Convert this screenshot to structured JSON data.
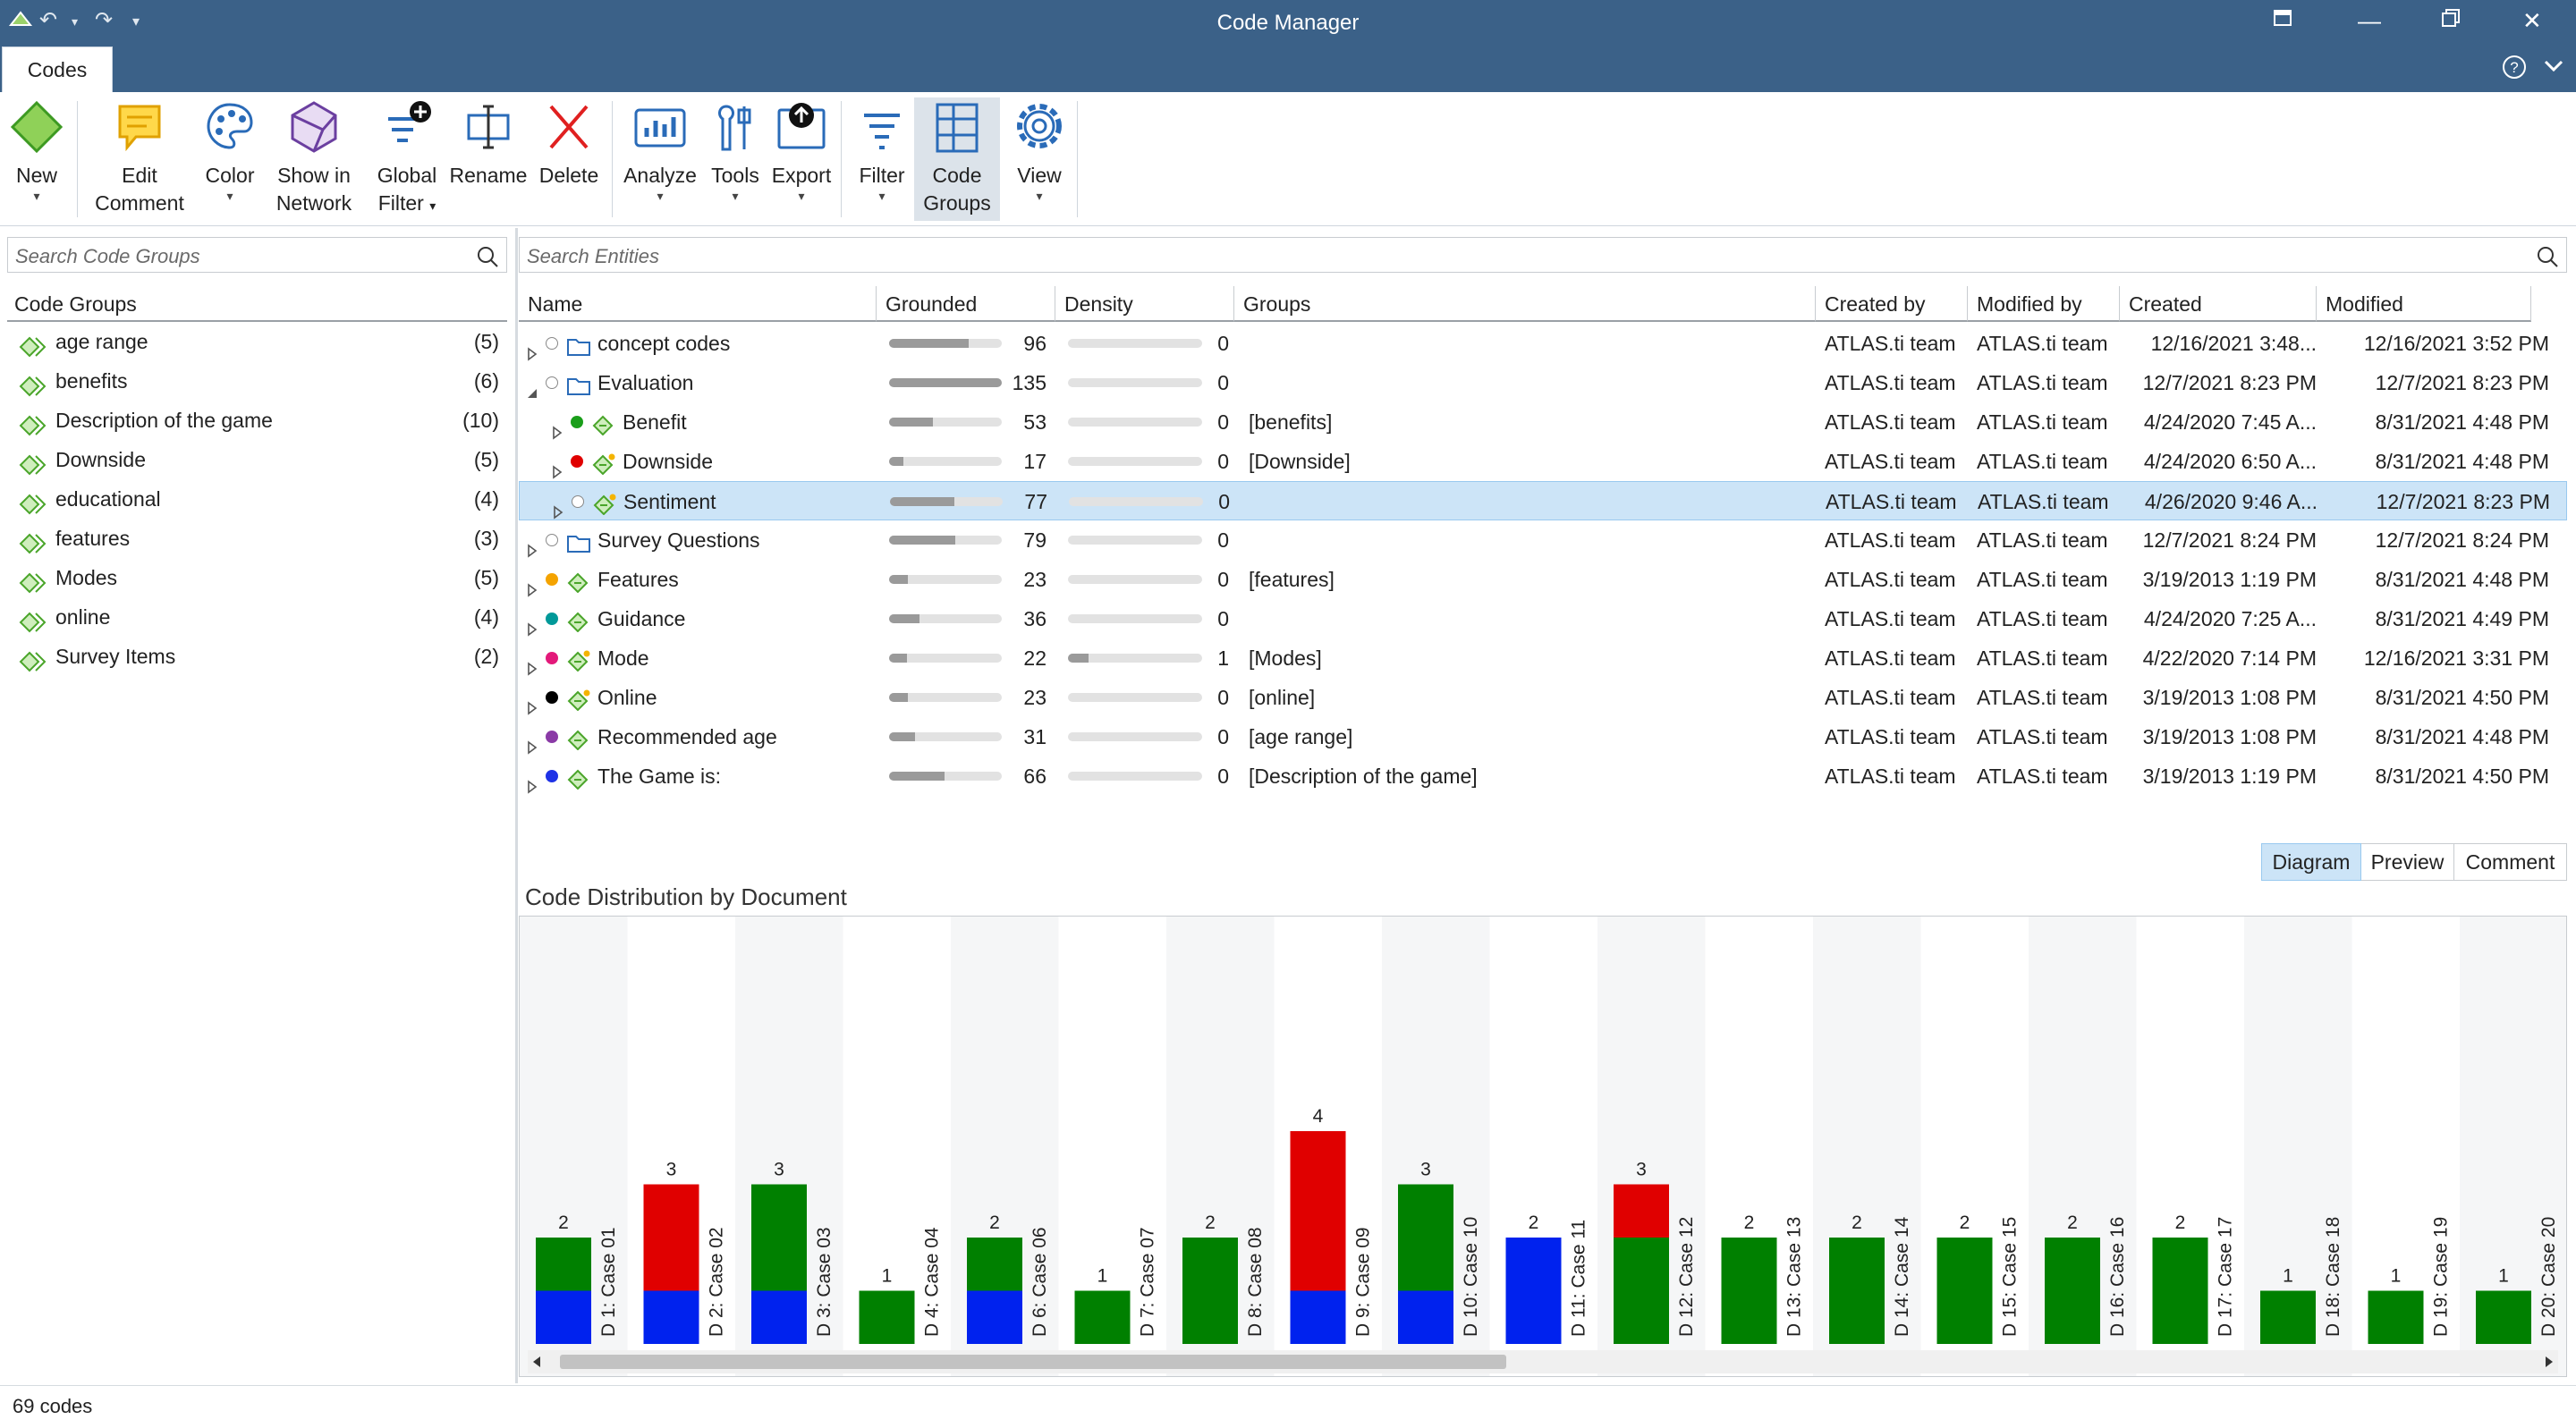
{
  "window": {
    "title": "Code Manager"
  },
  "tabs": [
    {
      "label": "Codes"
    }
  ],
  "ribbon": {
    "new": "New",
    "edit_comment": [
      "Edit",
      "Comment"
    ],
    "color": "Color",
    "show_network": [
      "Show in",
      "Network"
    ],
    "global_filter": [
      "Global",
      "Filter"
    ],
    "rename": "Rename",
    "delete": "Delete",
    "analyze": "Analyze",
    "tools": "Tools",
    "export": "Export",
    "filter": "Filter",
    "code_groups": [
      "Code",
      "Groups"
    ],
    "view": "View"
  },
  "left_panel": {
    "search_placeholder": "Search Code Groups",
    "header": "Code Groups",
    "groups": [
      {
        "name": "age range",
        "count": "(5)"
      },
      {
        "name": "benefits",
        "count": "(6)"
      },
      {
        "name": "Description of the game",
        "count": "(10)"
      },
      {
        "name": "Downside",
        "count": "(5)"
      },
      {
        "name": "educational",
        "count": "(4)"
      },
      {
        "name": "features",
        "count": "(3)"
      },
      {
        "name": "Modes",
        "count": "(5)"
      },
      {
        "name": "online",
        "count": "(4)"
      },
      {
        "name": "Survey Items",
        "count": "(2)"
      }
    ]
  },
  "entities": {
    "search_placeholder": "Search Entities",
    "columns": [
      "Name",
      "Grounded",
      "Density",
      "Groups",
      "Created by",
      "Modified by",
      "Created",
      "Modified"
    ],
    "rows": [
      {
        "name": "concept codes",
        "kind": "folder",
        "indent": 0,
        "expanded": false,
        "color": "",
        "grounded": "96",
        "gfrac": 0.71,
        "density": "0",
        "dfrac": 0,
        "groups": "",
        "created_by": "ATLAS.ti team",
        "modified_by": "ATLAS.ti team",
        "created": "12/16/2021 3:48...",
        "modified": "12/16/2021 3:52 PM"
      },
      {
        "name": "Evaluation",
        "kind": "folder",
        "indent": 0,
        "expanded": true,
        "color": "",
        "grounded": "135",
        "gfrac": 1.0,
        "density": "0",
        "dfrac": 0,
        "groups": "",
        "created_by": "ATLAS.ti team",
        "modified_by": "ATLAS.ti team",
        "created": "12/7/2021 8:23 PM",
        "modified": "12/7/2021 8:23 PM"
      },
      {
        "name": "Benefit",
        "kind": "code",
        "indent": 1,
        "expanded": false,
        "color": "#1a9e1a",
        "grounded": "53",
        "gfrac": 0.39,
        "density": "0",
        "dfrac": 0,
        "groups": "[benefits]",
        "created_by": "ATLAS.ti team",
        "modified_by": "ATLAS.ti team",
        "created": "4/24/2020 7:45 A...",
        "modified": "8/31/2021 4:48 PM"
      },
      {
        "name": "Downside",
        "kind": "code-star",
        "indent": 1,
        "expanded": false,
        "color": "#e00000",
        "grounded": "17",
        "gfrac": 0.13,
        "density": "0",
        "dfrac": 0,
        "groups": "[Downside]",
        "created_by": "ATLAS.ti team",
        "modified_by": "ATLAS.ti team",
        "created": "4/24/2020 6:50 A...",
        "modified": "8/31/2021 4:48 PM"
      },
      {
        "name": "Sentiment",
        "kind": "code-star",
        "indent": 1,
        "expanded": false,
        "color": "",
        "grounded": "77",
        "gfrac": 0.57,
        "density": "0",
        "dfrac": 0,
        "groups": "",
        "created_by": "ATLAS.ti team",
        "modified_by": "ATLAS.ti team",
        "created": "4/26/2020 9:46 A...",
        "modified": "12/7/2021 8:23 PM",
        "selected": true
      },
      {
        "name": "Survey Questions",
        "kind": "folder",
        "indent": 0,
        "expanded": false,
        "color": "",
        "grounded": "79",
        "gfrac": 0.59,
        "density": "0",
        "dfrac": 0,
        "groups": "",
        "created_by": "ATLAS.ti team",
        "modified_by": "ATLAS.ti team",
        "created": "12/7/2021 8:24 PM",
        "modified": "12/7/2021 8:24 PM"
      },
      {
        "name": "Features",
        "kind": "code",
        "indent": 0,
        "expanded": false,
        "color": "#f4a300",
        "grounded": "23",
        "gfrac": 0.17,
        "density": "0",
        "dfrac": 0,
        "groups": "[features]",
        "created_by": "ATLAS.ti team",
        "modified_by": "ATLAS.ti team",
        "created": "3/19/2013 1:19 PM",
        "modified": "8/31/2021 4:48 PM"
      },
      {
        "name": "Guidance",
        "kind": "code",
        "indent": 0,
        "expanded": false,
        "color": "#009999",
        "grounded": "36",
        "gfrac": 0.27,
        "density": "0",
        "dfrac": 0,
        "groups": "",
        "created_by": "ATLAS.ti team",
        "modified_by": "ATLAS.ti team",
        "created": "4/24/2020 7:25 A...",
        "modified": "8/31/2021 4:49 PM"
      },
      {
        "name": "Mode",
        "kind": "code-star",
        "indent": 0,
        "expanded": false,
        "color": "#e3197a",
        "grounded": "22",
        "gfrac": 0.16,
        "density": "1",
        "dfrac": 0.15,
        "groups": "[Modes]",
        "created_by": "ATLAS.ti team",
        "modified_by": "ATLAS.ti team",
        "created": "4/22/2020 7:14 PM",
        "modified": "12/16/2021 3:31 PM"
      },
      {
        "name": "Online",
        "kind": "code-star",
        "indent": 0,
        "expanded": false,
        "color": "#000000",
        "grounded": "23",
        "gfrac": 0.17,
        "density": "0",
        "dfrac": 0,
        "groups": "[online]",
        "created_by": "ATLAS.ti team",
        "modified_by": "ATLAS.ti team",
        "created": "3/19/2013 1:08 PM",
        "modified": "8/31/2021 4:50 PM"
      },
      {
        "name": "Recommended age",
        "kind": "code",
        "indent": 0,
        "expanded": false,
        "color": "#8a3aa6",
        "grounded": "31",
        "gfrac": 0.23,
        "density": "0",
        "dfrac": 0,
        "groups": "[age range]",
        "created_by": "ATLAS.ti team",
        "modified_by": "ATLAS.ti team",
        "created": "3/19/2013 1:08 PM",
        "modified": "8/31/2021 4:48 PM"
      },
      {
        "name": "The Game is:",
        "kind": "code",
        "indent": 0,
        "expanded": false,
        "color": "#1e32e6",
        "grounded": "66",
        "gfrac": 0.49,
        "density": "0",
        "dfrac": 0,
        "groups": "[Description of the game]",
        "created_by": "ATLAS.ti team",
        "modified_by": "ATLAS.ti team",
        "created": "3/19/2013 1:19 PM",
        "modified": "8/31/2021 4:50 PM"
      }
    ]
  },
  "bottom_tabs": {
    "diagram": "Diagram",
    "preview": "Preview",
    "comment": "Comment"
  },
  "chart_data": {
    "type": "bar",
    "title": "Code Distribution by Document",
    "stacked": true,
    "ylim": [
      0,
      4
    ],
    "categories": [
      "D 1: Case 01",
      "D 2: Case 02",
      "D 3: Case 03",
      "D 4: Case 04",
      "D 6: Case 06",
      "D 7: Case 07",
      "D 8: Case 08",
      "D 9: Case 09",
      "D 10: Case 10",
      "D 11: Case 11",
      "D 12: Case 12",
      "D 13: Case 13",
      "D 14: Case 14",
      "D 15: Case 15",
      "D 16: Case 16",
      "D 17: Case 17",
      "D 18: Case 18",
      "D 19: Case 19",
      "D 20: Case 20"
    ],
    "totals": [
      2,
      3,
      3,
      1,
      2,
      1,
      2,
      4,
      3,
      2,
      3,
      2,
      2,
      2,
      2,
      2,
      1,
      1,
      1
    ],
    "series": [
      {
        "color": "#0022ee",
        "values": [
          1,
          1,
          1,
          0,
          1,
          0,
          0,
          1,
          1,
          2,
          0,
          0,
          0,
          0,
          0,
          0,
          0,
          0,
          0
        ]
      },
      {
        "color": "#008000",
        "values": [
          1,
          0,
          2,
          1,
          1,
          1,
          2,
          0,
          2,
          0,
          2,
          2,
          2,
          2,
          2,
          2,
          1,
          1,
          1
        ]
      },
      {
        "color": "#e00000",
        "values": [
          0,
          2,
          0,
          0,
          0,
          0,
          0,
          3,
          0,
          0,
          1,
          0,
          0,
          0,
          0,
          0,
          0,
          0,
          0
        ]
      }
    ]
  },
  "status": {
    "text": "69 codes"
  }
}
